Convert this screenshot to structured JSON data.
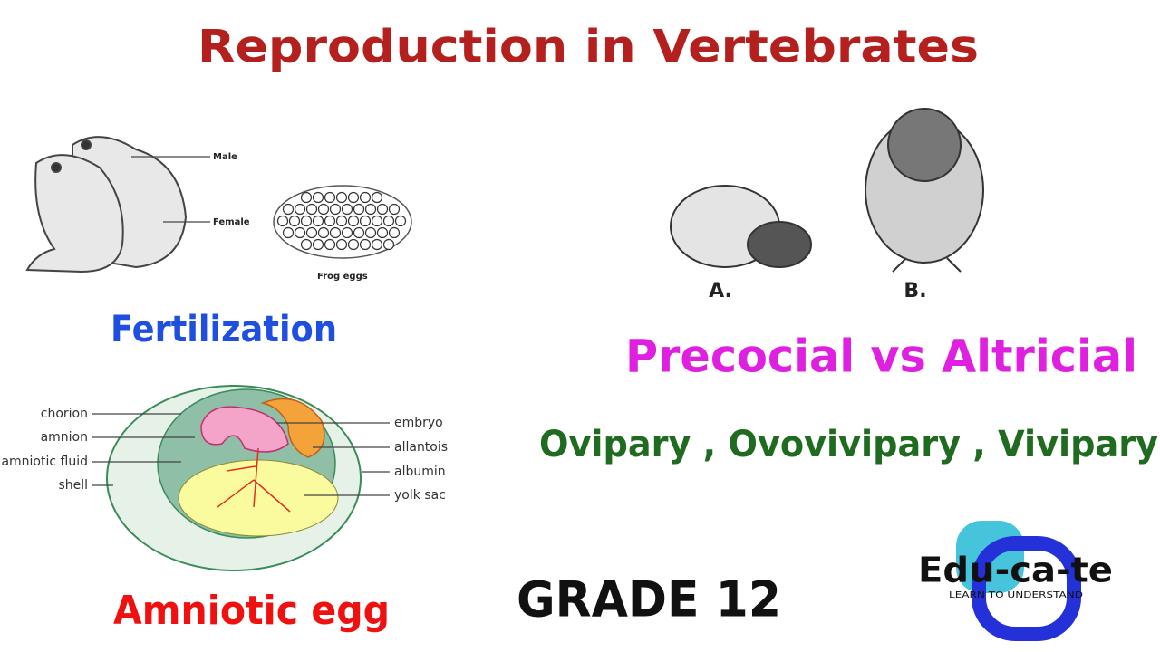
{
  "header": {
    "title": "Reproduction in Vertebrates"
  },
  "frog_figure": {
    "labels": [
      "Male",
      "Female",
      "Frog eggs"
    ],
    "caption": "Fertilization"
  },
  "chick_figure": {
    "labels": [
      "A.",
      "B."
    ],
    "caption": "Precocial vs Altricial"
  },
  "subtitle": "Ovipary , Ovovivipary , Vivipary",
  "egg_figure": {
    "left_labels": [
      "chorion",
      "amnion",
      "amniotic fluid",
      "shell"
    ],
    "right_labels": [
      "embryo",
      "allantois",
      "albumin",
      "yolk sac"
    ],
    "caption": "Amniotic egg"
  },
  "grade": "GRADE 12",
  "logo": {
    "name": "Edu-ca-te",
    "tagline": "LEARN TO UNDERSTAND"
  }
}
